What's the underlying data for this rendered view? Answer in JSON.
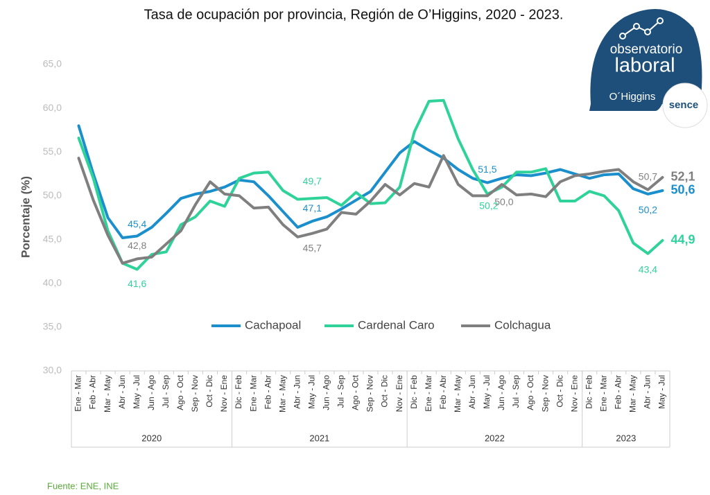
{
  "chart_data": {
    "type": "line",
    "title": "Tasa de ocupación por provincia, Región de O’Higgins, 2020 - 2023.",
    "y_label": "Porcentaje (%)",
    "source": "Fuente: ENE, INE",
    "logo": {
      "line1": "observatorio",
      "line2": "laboral",
      "region": "O´Higgins",
      "brand": "sence"
    },
    "category_groups": [
      {
        "label": "2020",
        "categories": [
          "Ene - Mar",
          "Feb - Abr",
          "Mar - May",
          "Abr - Jun",
          "May - Jul",
          "Jun - Ago",
          "Jul - Sep",
          "Ago - Oct",
          "Sep - Nov",
          "Oct - Dic",
          "Nov - Ene"
        ]
      },
      {
        "label": "2021",
        "categories": [
          "Dic - Feb",
          "Ene - Mar",
          "Feb - Abr",
          "Mar - May",
          "Abr - Jun",
          "May - Jul",
          "Jun - Ago",
          "Jul - Sep",
          "Ago - Oct",
          "Sep - Nov",
          "Oct - Dic",
          "Nov - Ene"
        ]
      },
      {
        "label": "2022",
        "categories": [
          "Dic - Feb",
          "Ene - Mar",
          "Feb - Abr",
          "Mar - May",
          "Abr - Jun",
          "May - Jul",
          "Jun - Ago",
          "Jul - Sep",
          "Ago - Oct",
          "Sep - Nov",
          "Oct - Dic",
          "Nov - Ene"
        ]
      },
      {
        "label": "2023",
        "categories": [
          "Dic - Feb",
          "Ene - Mar",
          "Feb - Abr",
          "Mar - May",
          "Abr - Jun",
          "May - Jul"
        ]
      }
    ],
    "ylim": [
      30,
      65
    ],
    "yticks": [
      {
        "value": 30,
        "label": "30,0"
      },
      {
        "value": 35,
        "label": "35,0"
      },
      {
        "value": 40,
        "label": "40,0"
      },
      {
        "value": 45,
        "label": "45,0"
      },
      {
        "value": 50,
        "label": "50,0"
      },
      {
        "value": 55,
        "label": "55,0"
      },
      {
        "value": 60,
        "label": "60,0"
      },
      {
        "value": 65,
        "label": "65,0"
      }
    ],
    "grid": false,
    "legend": "middle",
    "series": [
      {
        "name": "Cachapoal",
        "color": "#1a8fcc",
        "values": [
          58.0,
          52.5,
          47.5,
          45.2,
          45.4,
          46.4,
          48.0,
          49.7,
          50.2,
          50.5,
          51.0,
          51.8,
          51.6,
          50.0,
          48.2,
          46.4,
          47.1,
          47.6,
          48.5,
          49.5,
          50.5,
          52.7,
          54.9,
          56.2,
          55.2,
          54.3,
          53.0,
          52.0,
          51.5,
          52.0,
          52.4,
          52.3,
          52.6,
          53.0,
          52.5,
          52.0,
          52.4,
          52.5,
          50.8,
          50.2,
          50.6
        ],
        "value_labels": [
          null,
          null,
          null,
          null,
          "45,4",
          null,
          null,
          null,
          null,
          null,
          null,
          null,
          null,
          null,
          null,
          null,
          "47,1",
          null,
          null,
          null,
          null,
          null,
          null,
          null,
          null,
          null,
          null,
          null,
          "51,5",
          null,
          null,
          null,
          null,
          null,
          null,
          null,
          null,
          null,
          null,
          "50,2",
          "50,6"
        ]
      },
      {
        "name": "Cardenal Caro",
        "color": "#2fd39a",
        "values": [
          56.6,
          52.0,
          46.0,
          42.3,
          41.6,
          43.3,
          43.6,
          46.7,
          47.6,
          49.4,
          48.8,
          52.0,
          52.6,
          52.7,
          50.6,
          49.6,
          49.7,
          49.8,
          48.9,
          50.4,
          49.1,
          49.2,
          51.0,
          57.3,
          60.8,
          60.9,
          56.5,
          53.0,
          50.2,
          51.0,
          52.7,
          52.7,
          53.1,
          49.4,
          49.4,
          50.5,
          50.0,
          48.3,
          44.6,
          43.4,
          44.9
        ],
        "value_labels": [
          null,
          null,
          null,
          null,
          "41,6",
          null,
          null,
          null,
          null,
          null,
          null,
          null,
          null,
          null,
          null,
          null,
          "49,7",
          null,
          null,
          null,
          null,
          null,
          null,
          null,
          null,
          null,
          null,
          null,
          "50,2",
          null,
          null,
          null,
          null,
          null,
          null,
          null,
          null,
          null,
          null,
          "43,4",
          "44,9"
        ]
      },
      {
        "name": "Colchagua",
        "color": "#7f7f7f",
        "values": [
          54.3,
          49.5,
          45.5,
          42.3,
          42.8,
          43.0,
          44.5,
          46.0,
          49.0,
          51.6,
          50.2,
          50.0,
          48.6,
          48.7,
          46.7,
          45.3,
          45.7,
          46.2,
          48.1,
          47.9,
          49.4,
          51.3,
          50.1,
          51.4,
          51.0,
          54.6,
          51.3,
          50.0,
          50.0,
          51.3,
          50.1,
          50.2,
          49.9,
          51.6,
          52.3,
          52.5,
          52.8,
          53.0,
          51.6,
          50.7,
          52.1
        ],
        "value_labels": [
          null,
          null,
          null,
          null,
          "42,8",
          null,
          null,
          null,
          null,
          null,
          null,
          null,
          null,
          null,
          null,
          null,
          "45,7",
          null,
          null,
          null,
          null,
          null,
          null,
          null,
          null,
          null,
          null,
          null,
          "50,0",
          null,
          null,
          null,
          null,
          null,
          null,
          null,
          null,
          null,
          null,
          "50,7",
          "52,1"
        ]
      }
    ]
  }
}
